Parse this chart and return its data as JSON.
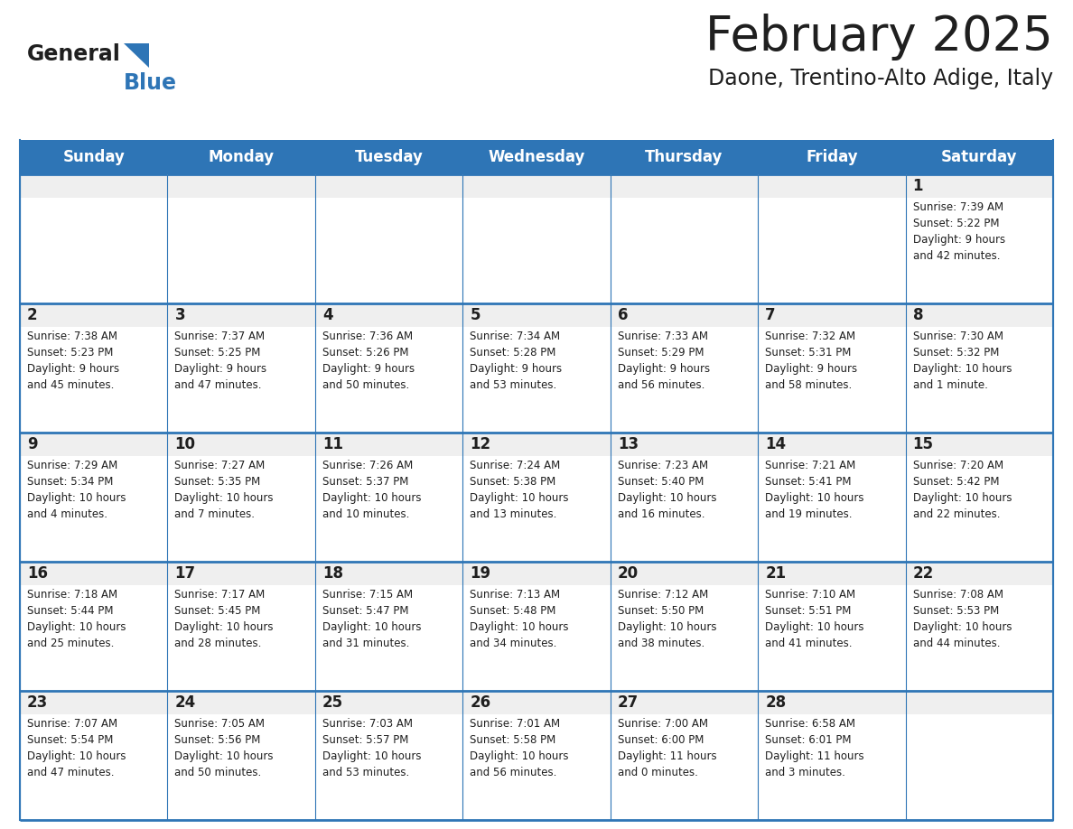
{
  "title": "February 2025",
  "subtitle": "Daone, Trentino-Alto Adige, Italy",
  "days_of_week": [
    "Sunday",
    "Monday",
    "Tuesday",
    "Wednesday",
    "Thursday",
    "Friday",
    "Saturday"
  ],
  "header_bg": "#2E75B6",
  "header_text": "#FFFFFF",
  "cell_bg_gray": "#EFEFEF",
  "cell_bg_white": "#FFFFFF",
  "grid_line_color": "#2E75B6",
  "title_color": "#1F1F1F",
  "subtitle_color": "#1F1F1F",
  "text_color": "#1F1F1F",
  "logo_general_color": "#1F1F1F",
  "logo_blue_color": "#2E75B6",
  "weeks": [
    [
      {
        "day": null,
        "info": null
      },
      {
        "day": null,
        "info": null
      },
      {
        "day": null,
        "info": null
      },
      {
        "day": null,
        "info": null
      },
      {
        "day": null,
        "info": null
      },
      {
        "day": null,
        "info": null
      },
      {
        "day": 1,
        "info": "Sunrise: 7:39 AM\nSunset: 5:22 PM\nDaylight: 9 hours\nand 42 minutes."
      }
    ],
    [
      {
        "day": 2,
        "info": "Sunrise: 7:38 AM\nSunset: 5:23 PM\nDaylight: 9 hours\nand 45 minutes."
      },
      {
        "day": 3,
        "info": "Sunrise: 7:37 AM\nSunset: 5:25 PM\nDaylight: 9 hours\nand 47 minutes."
      },
      {
        "day": 4,
        "info": "Sunrise: 7:36 AM\nSunset: 5:26 PM\nDaylight: 9 hours\nand 50 minutes."
      },
      {
        "day": 5,
        "info": "Sunrise: 7:34 AM\nSunset: 5:28 PM\nDaylight: 9 hours\nand 53 minutes."
      },
      {
        "day": 6,
        "info": "Sunrise: 7:33 AM\nSunset: 5:29 PM\nDaylight: 9 hours\nand 56 minutes."
      },
      {
        "day": 7,
        "info": "Sunrise: 7:32 AM\nSunset: 5:31 PM\nDaylight: 9 hours\nand 58 minutes."
      },
      {
        "day": 8,
        "info": "Sunrise: 7:30 AM\nSunset: 5:32 PM\nDaylight: 10 hours\nand 1 minute."
      }
    ],
    [
      {
        "day": 9,
        "info": "Sunrise: 7:29 AM\nSunset: 5:34 PM\nDaylight: 10 hours\nand 4 minutes."
      },
      {
        "day": 10,
        "info": "Sunrise: 7:27 AM\nSunset: 5:35 PM\nDaylight: 10 hours\nand 7 minutes."
      },
      {
        "day": 11,
        "info": "Sunrise: 7:26 AM\nSunset: 5:37 PM\nDaylight: 10 hours\nand 10 minutes."
      },
      {
        "day": 12,
        "info": "Sunrise: 7:24 AM\nSunset: 5:38 PM\nDaylight: 10 hours\nand 13 minutes."
      },
      {
        "day": 13,
        "info": "Sunrise: 7:23 AM\nSunset: 5:40 PM\nDaylight: 10 hours\nand 16 minutes."
      },
      {
        "day": 14,
        "info": "Sunrise: 7:21 AM\nSunset: 5:41 PM\nDaylight: 10 hours\nand 19 minutes."
      },
      {
        "day": 15,
        "info": "Sunrise: 7:20 AM\nSunset: 5:42 PM\nDaylight: 10 hours\nand 22 minutes."
      }
    ],
    [
      {
        "day": 16,
        "info": "Sunrise: 7:18 AM\nSunset: 5:44 PM\nDaylight: 10 hours\nand 25 minutes."
      },
      {
        "day": 17,
        "info": "Sunrise: 7:17 AM\nSunset: 5:45 PM\nDaylight: 10 hours\nand 28 minutes."
      },
      {
        "day": 18,
        "info": "Sunrise: 7:15 AM\nSunset: 5:47 PM\nDaylight: 10 hours\nand 31 minutes."
      },
      {
        "day": 19,
        "info": "Sunrise: 7:13 AM\nSunset: 5:48 PM\nDaylight: 10 hours\nand 34 minutes."
      },
      {
        "day": 20,
        "info": "Sunrise: 7:12 AM\nSunset: 5:50 PM\nDaylight: 10 hours\nand 38 minutes."
      },
      {
        "day": 21,
        "info": "Sunrise: 7:10 AM\nSunset: 5:51 PM\nDaylight: 10 hours\nand 41 minutes."
      },
      {
        "day": 22,
        "info": "Sunrise: 7:08 AM\nSunset: 5:53 PM\nDaylight: 10 hours\nand 44 minutes."
      }
    ],
    [
      {
        "day": 23,
        "info": "Sunrise: 7:07 AM\nSunset: 5:54 PM\nDaylight: 10 hours\nand 47 minutes."
      },
      {
        "day": 24,
        "info": "Sunrise: 7:05 AM\nSunset: 5:56 PM\nDaylight: 10 hours\nand 50 minutes."
      },
      {
        "day": 25,
        "info": "Sunrise: 7:03 AM\nSunset: 5:57 PM\nDaylight: 10 hours\nand 53 minutes."
      },
      {
        "day": 26,
        "info": "Sunrise: 7:01 AM\nSunset: 5:58 PM\nDaylight: 10 hours\nand 56 minutes."
      },
      {
        "day": 27,
        "info": "Sunrise: 7:00 AM\nSunset: 6:00 PM\nDaylight: 11 hours\nand 0 minutes."
      },
      {
        "day": 28,
        "info": "Sunrise: 6:58 AM\nSunset: 6:01 PM\nDaylight: 11 hours\nand 3 minutes."
      },
      {
        "day": null,
        "info": null
      }
    ]
  ]
}
